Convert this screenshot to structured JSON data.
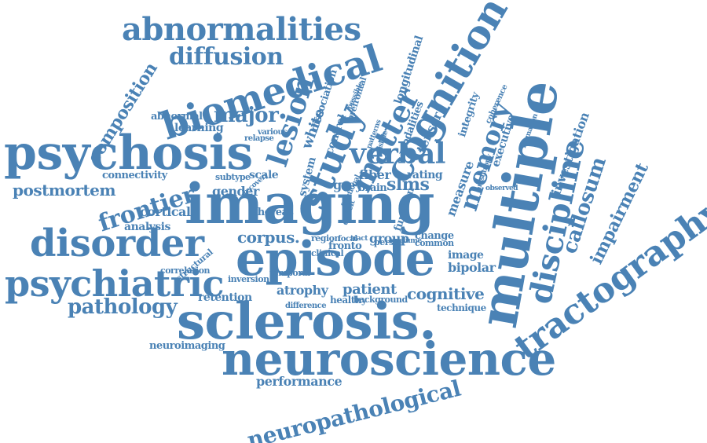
{
  "colors": {
    "word": "#4a82b5",
    "background": "#ffffff"
  },
  "words": [
    "abnormalities",
    "diffusion",
    "composition",
    "biomedical",
    "lesion",
    "study",
    "matter",
    "cognition",
    "memory",
    "multiple",
    "discipline",
    "tractography",
    "callosum",
    "impairment",
    "investigation",
    "psychosis",
    "verbal",
    "imaging",
    "frontier",
    "postmortem",
    "disorder",
    "episode",
    "psychiatric",
    "sclerosis.",
    "neuroscience",
    "neuropathological",
    "pathology",
    "corpus.",
    "cortical",
    "analysis",
    "connectivity",
    "learning",
    "abnormal",
    "major",
    "gender",
    "scale",
    "subtype",
    "white",
    "dissociation",
    "longitudinal",
    "integrity",
    "executive",
    "tensor",
    "slms",
    "rating",
    "measure",
    "fiber",
    "grey",
    "brain",
    "system",
    "group",
    "patient",
    "atrophy",
    "cognitive",
    "bipolar",
    "image",
    "change",
    "common",
    "function",
    "retention",
    "performance",
    "neuroimaging",
    "whereas",
    "correlation",
    "structural",
    "inversion",
    "clinical",
    "region",
    "fronto",
    "healthy",
    "background",
    "technique",
    "difference",
    "temporal",
    "person",
    "modalities",
    "observed",
    "relapse",
    "various",
    "control",
    "prefrontal",
    "visible",
    "deficit",
    "focal",
    "tract",
    "recovery",
    "formation",
    "coherence",
    "possible",
    "volume",
    "patterns",
    "fractional",
    "anisotropy"
  ]
}
